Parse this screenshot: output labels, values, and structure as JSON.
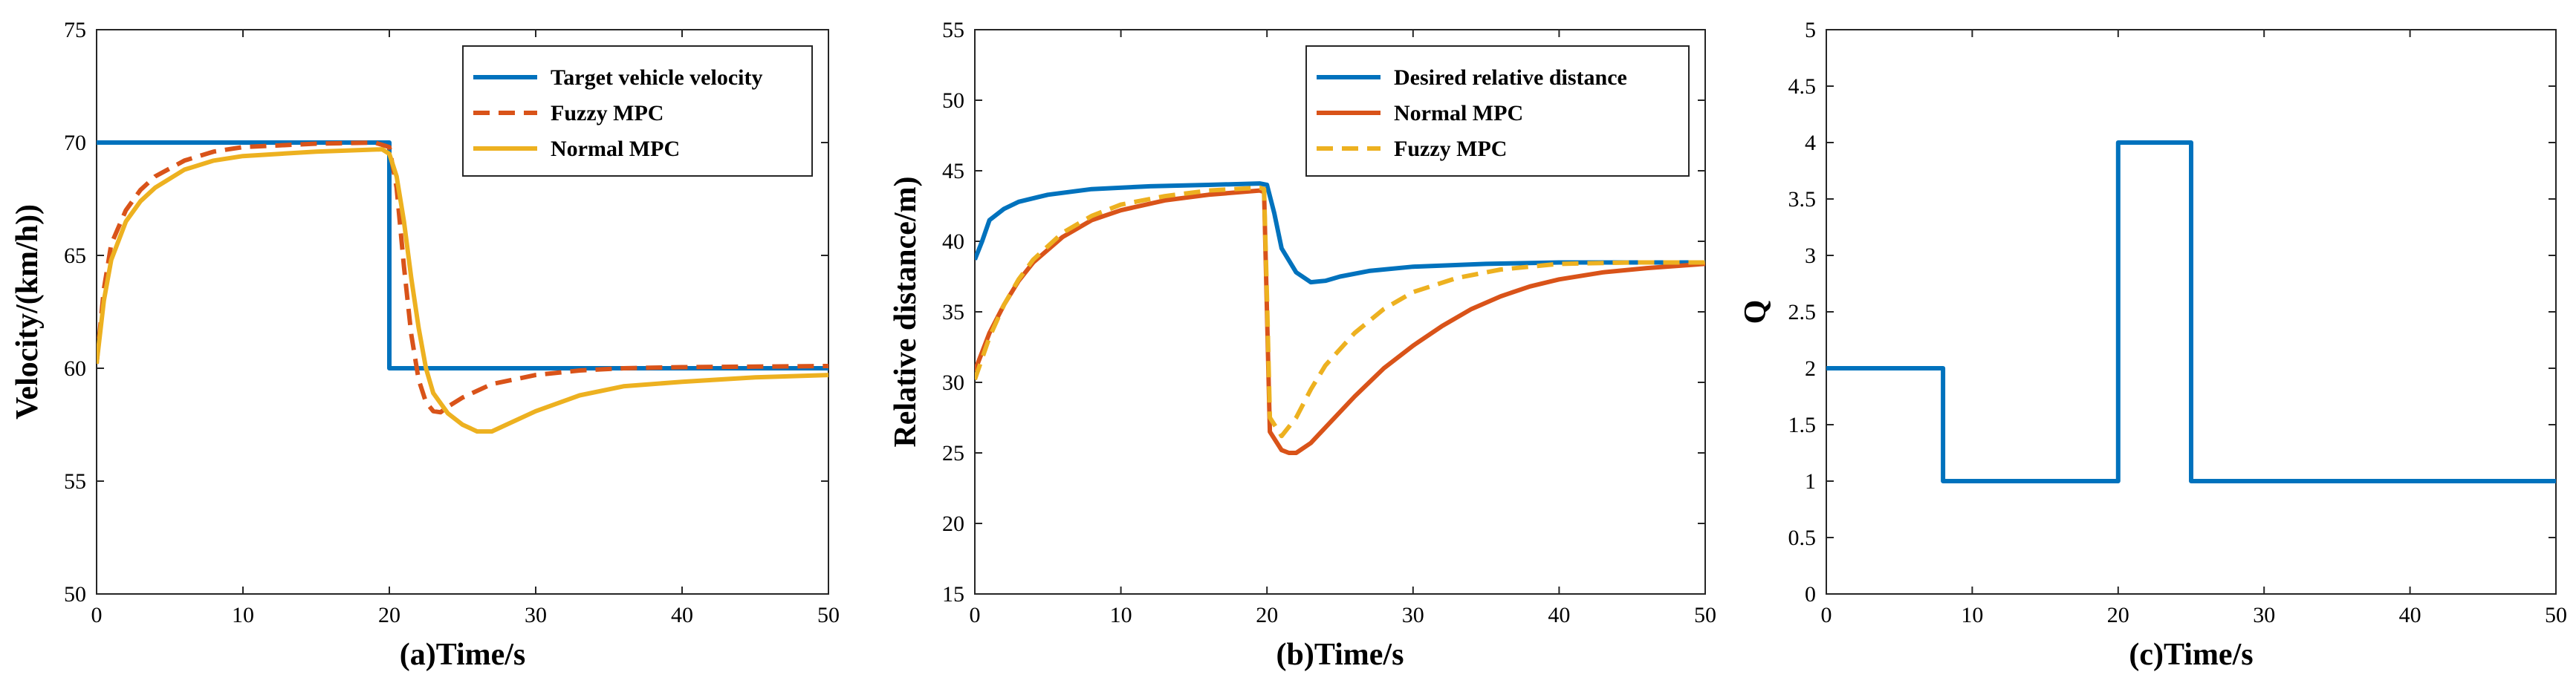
{
  "chart_data": [
    {
      "type": "line",
      "panel": "a",
      "title": "",
      "xlabel": "(a)Time/s",
      "ylabel": "Velocity/(km/h))",
      "xlim": [
        0,
        50
      ],
      "ylim": [
        50,
        75
      ],
      "xticks": [
        0,
        10,
        20,
        30,
        40,
        50
      ],
      "yticks": [
        50,
        55,
        60,
        65,
        70,
        75
      ],
      "legend_position": "top-right",
      "series": [
        {
          "name": "Target vehicle velocity",
          "color": "#0072BD",
          "dash": "solid",
          "points": [
            [
              0,
              70
            ],
            [
              20,
              70
            ],
            [
              20,
              60
            ],
            [
              50,
              60
            ]
          ]
        },
        {
          "name": "Fuzzy MPC",
          "color": "#D95319",
          "dash": "dashed",
          "points": [
            [
              0,
              60.2
            ],
            [
              0.5,
              63.5
            ],
            [
              1,
              65.5
            ],
            [
              2,
              67
            ],
            [
              3,
              67.9
            ],
            [
              4,
              68.5
            ],
            [
              6,
              69.2
            ],
            [
              8,
              69.6
            ],
            [
              10,
              69.8
            ],
            [
              15,
              69.95
            ],
            [
              19,
              70
            ],
            [
              20,
              69.8
            ],
            [
              20.5,
              68
            ],
            [
              21,
              64.5
            ],
            [
              21.5,
              61.5
            ],
            [
              22,
              59.5
            ],
            [
              22.5,
              58.5
            ],
            [
              23,
              58.1
            ],
            [
              23.5,
              58.05
            ],
            [
              24,
              58.3
            ],
            [
              25,
              58.7
            ],
            [
              27,
              59.3
            ],
            [
              30,
              59.7
            ],
            [
              33,
              59.9
            ],
            [
              36,
              60
            ],
            [
              40,
              60.05
            ],
            [
              50,
              60.1
            ]
          ]
        },
        {
          "name": "Normal MPC",
          "color": "#EDB120",
          "dash": "solid",
          "points": [
            [
              0,
              60.2
            ],
            [
              0.5,
              63
            ],
            [
              1,
              64.8
            ],
            [
              2,
              66.5
            ],
            [
              3,
              67.4
            ],
            [
              4,
              68
            ],
            [
              6,
              68.8
            ],
            [
              8,
              69.2
            ],
            [
              10,
              69.4
            ],
            [
              15,
              69.6
            ],
            [
              19.5,
              69.7
            ],
            [
              20,
              69.5
            ],
            [
              20.5,
              68.5
            ],
            [
              21,
              66.5
            ],
            [
              21.5,
              64
            ],
            [
              22,
              61.8
            ],
            [
              22.5,
              60
            ],
            [
              23,
              58.9
            ],
            [
              24,
              58
            ],
            [
              25,
              57.5
            ],
            [
              26,
              57.2
            ],
            [
              27,
              57.2
            ],
            [
              28,
              57.5
            ],
            [
              30,
              58.1
            ],
            [
              33,
              58.8
            ],
            [
              36,
              59.2
            ],
            [
              40,
              59.4
            ],
            [
              45,
              59.6
            ],
            [
              50,
              59.7
            ]
          ]
        }
      ]
    },
    {
      "type": "line",
      "panel": "b",
      "title": "",
      "xlabel": "(b)Time/s",
      "ylabel": "Relative distance/m)",
      "xlim": [
        0,
        50
      ],
      "ylim": [
        15,
        55
      ],
      "xticks": [
        0,
        10,
        20,
        30,
        40,
        50
      ],
      "yticks": [
        15,
        20,
        25,
        30,
        35,
        40,
        45,
        50,
        55
      ],
      "legend_position": "top-right",
      "series": [
        {
          "name": "Desired relative distance",
          "color": "#0072BD",
          "dash": "solid",
          "points": [
            [
              0,
              38.7
            ],
            [
              0.5,
              40
            ],
            [
              1,
              41.5
            ],
            [
              2,
              42.3
            ],
            [
              3,
              42.8
            ],
            [
              5,
              43.3
            ],
            [
              8,
              43.7
            ],
            [
              12,
              43.9
            ],
            [
              16,
              44
            ],
            [
              19.5,
              44.1
            ],
            [
              20,
              44
            ],
            [
              20.5,
              42
            ],
            [
              21,
              39.5
            ],
            [
              22,
              37.8
            ],
            [
              23,
              37.1
            ],
            [
              24,
              37.2
            ],
            [
              25,
              37.5
            ],
            [
              27,
              37.9
            ],
            [
              30,
              38.2
            ],
            [
              35,
              38.4
            ],
            [
              40,
              38.5
            ],
            [
              50,
              38.5
            ]
          ]
        },
        {
          "name": "Normal MPC",
          "color": "#D95319",
          "dash": "solid",
          "points": [
            [
              0,
              30.8
            ],
            [
              1,
              33.5
            ],
            [
              2,
              35.5
            ],
            [
              3,
              37.2
            ],
            [
              4,
              38.5
            ],
            [
              6,
              40.3
            ],
            [
              8,
              41.5
            ],
            [
              10,
              42.2
            ],
            [
              13,
              42.9
            ],
            [
              16,
              43.3
            ],
            [
              19.5,
              43.6
            ],
            [
              19.8,
              43.5
            ],
            [
              20,
              35
            ],
            [
              20.2,
              26.5
            ],
            [
              21,
              25.2
            ],
            [
              21.5,
              25
            ],
            [
              22,
              25
            ],
            [
              23,
              25.7
            ],
            [
              24,
              26.8
            ],
            [
              26,
              29
            ],
            [
              28,
              31
            ],
            [
              30,
              32.6
            ],
            [
              32,
              34
            ],
            [
              34,
              35.2
            ],
            [
              36,
              36.1
            ],
            [
              38,
              36.8
            ],
            [
              40,
              37.3
            ],
            [
              43,
              37.8
            ],
            [
              46,
              38.1
            ],
            [
              50,
              38.4
            ]
          ]
        },
        {
          "name": "Fuzzy MPC",
          "color": "#EDB120",
          "dash": "dashed",
          "points": [
            [
              0,
              30.2
            ],
            [
              1,
              33.2
            ],
            [
              2,
              35.5
            ],
            [
              3,
              37.3
            ],
            [
              4,
              38.7
            ],
            [
              6,
              40.6
            ],
            [
              8,
              41.8
            ],
            [
              10,
              42.6
            ],
            [
              13,
              43.2
            ],
            [
              16,
              43.6
            ],
            [
              19.5,
              43.8
            ],
            [
              19.8,
              43.7
            ],
            [
              20,
              36
            ],
            [
              20.2,
              27.5
            ],
            [
              21,
              26.2
            ],
            [
              22,
              27.5
            ],
            [
              23,
              29.5
            ],
            [
              24,
              31.2
            ],
            [
              26,
              33.5
            ],
            [
              28,
              35.2
            ],
            [
              30,
              36.4
            ],
            [
              33,
              37.4
            ],
            [
              36,
              38
            ],
            [
              40,
              38.4
            ],
            [
              45,
              38.5
            ],
            [
              50,
              38.5
            ]
          ]
        }
      ]
    },
    {
      "type": "line",
      "panel": "c",
      "title": "",
      "xlabel": "(c)Time/s",
      "ylabel": "Q",
      "xlim": [
        0,
        50
      ],
      "ylim": [
        0,
        5
      ],
      "xticks": [
        0,
        10,
        20,
        30,
        40,
        50
      ],
      "yticks": [
        0,
        0.5,
        1,
        1.5,
        2,
        2.5,
        3,
        3.5,
        4,
        4.5,
        5
      ],
      "legend_position": "none",
      "series": [
        {
          "name": "Q",
          "color": "#0072BD",
          "dash": "solid",
          "points": [
            [
              0,
              2
            ],
            [
              8,
              2
            ],
            [
              8,
              1
            ],
            [
              20,
              1
            ],
            [
              20,
              4
            ],
            [
              25,
              4
            ],
            [
              25,
              1
            ],
            [
              50,
              1
            ]
          ]
        }
      ]
    }
  ]
}
